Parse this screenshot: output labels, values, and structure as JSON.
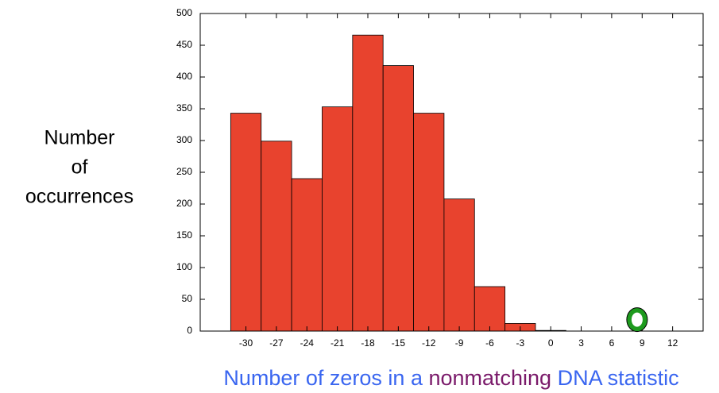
{
  "chart_data": {
    "type": "histogram",
    "xlabel_parts": [
      {
        "text": "Number of zeros in a ",
        "color": "#3a66f0"
      },
      {
        "text": "nonmatching",
        "color": "#7a1a6a"
      },
      {
        "text": " DNA statistic",
        "color": "#3a66f0"
      }
    ],
    "ylabel_lines": [
      "Number",
      "of",
      "occurrences"
    ],
    "ylabel_color": "#3a66f0",
    "bins": [
      -31.5,
      -28.5,
      -25.5,
      -22.5,
      -19.5,
      -16.5,
      -13.5,
      -10.5,
      -7.5,
      -4.5,
      -1.5,
      1.5
    ],
    "values": [
      343,
      299,
      240,
      353,
      466,
      418,
      343,
      208,
      70,
      12,
      1
    ],
    "color": "#e8432e",
    "marker": {
      "x": 8.5,
      "y": 18,
      "color": "#1e9a1e"
    },
    "xlim": [
      -34.5,
      15
    ],
    "xticks": [
      -30,
      -27,
      -24,
      -21,
      -18,
      -15,
      -12,
      -9,
      -6,
      -3,
      0,
      3,
      6,
      9,
      12
    ],
    "ylim": [
      0,
      500
    ],
    "yticks": [
      0,
      50,
      100,
      150,
      200,
      250,
      300,
      350,
      400,
      450,
      500
    ],
    "grid": false
  }
}
